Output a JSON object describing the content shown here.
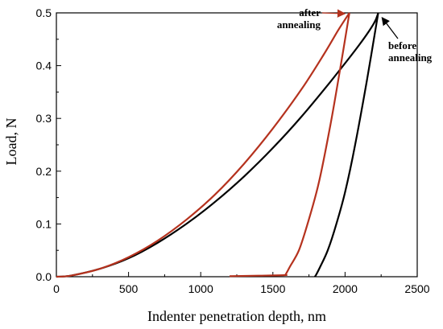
{
  "chart_data": {
    "type": "line",
    "title": "",
    "xlabel": "Indenter penetration depth, nm",
    "ylabel": "Load, N",
    "xlim": [
      0,
      2500
    ],
    "ylim": [
      0,
      0.5
    ],
    "xticks": [
      0,
      500,
      1000,
      1500,
      2000,
      2500
    ],
    "yticks": [
      0.0,
      0.1,
      0.2,
      0.3,
      0.4,
      0.5
    ],
    "xtick_labels": [
      "0",
      "500",
      "1000",
      "1500",
      "2000",
      "2500"
    ],
    "ytick_labels": [
      "0.0",
      "0.1",
      "0.2",
      "0.3",
      "0.4",
      "0.5"
    ],
    "grid": false,
    "legend": "none",
    "series": [
      {
        "color": "#000000",
        "loading": [
          [
            0,
            0
          ],
          [
            100,
            0.002
          ],
          [
            300,
            0.015
          ],
          [
            500,
            0.035
          ],
          [
            700,
            0.064
          ],
          [
            900,
            0.1
          ],
          [
            1100,
            0.142
          ],
          [
            1300,
            0.19
          ],
          [
            1500,
            0.244
          ],
          [
            1700,
            0.304
          ],
          [
            1900,
            0.37
          ],
          [
            2100,
            0.44
          ],
          [
            2200,
            0.48
          ],
          [
            2230,
            0.5
          ]
        ],
        "unloading": [
          [
            2230,
            0.5
          ],
          [
            2150,
            0.37
          ],
          [
            2070,
            0.25
          ],
          [
            2000,
            0.16
          ],
          [
            1940,
            0.1
          ],
          [
            1880,
            0.05
          ],
          [
            1830,
            0.02
          ],
          [
            1800,
            0.004
          ],
          [
            1790,
            0.0
          ]
        ]
      },
      {
        "color": "#b5321e",
        "loading": [
          [
            0,
            0
          ],
          [
            100,
            0.002
          ],
          [
            300,
            0.015
          ],
          [
            500,
            0.037
          ],
          [
            700,
            0.068
          ],
          [
            900,
            0.108
          ],
          [
            1100,
            0.156
          ],
          [
            1300,
            0.214
          ],
          [
            1500,
            0.281
          ],
          [
            1700,
            0.356
          ],
          [
            1850,
            0.42
          ],
          [
            1950,
            0.466
          ],
          [
            2030,
            0.5
          ]
        ],
        "unloading": [
          [
            2030,
            0.5
          ],
          [
            1970,
            0.4
          ],
          [
            1900,
            0.29
          ],
          [
            1820,
            0.18
          ],
          [
            1740,
            0.1
          ],
          [
            1680,
            0.05
          ],
          [
            1620,
            0.02
          ],
          [
            1590,
            0.005
          ],
          [
            1580,
            0.003
          ],
          [
            1400,
            0.002
          ],
          [
            1200,
            0.001
          ]
        ]
      }
    ],
    "annotations": [
      {
        "lines": [
          "after",
          "annealing"
        ],
        "arrow_to": [
          2020,
          0.5
        ],
        "color": "#b5321e"
      },
      {
        "lines": [
          "before",
          "annealing"
        ],
        "arrow_to": [
          2240,
          0.5
        ],
        "color": "#000000"
      }
    ]
  }
}
